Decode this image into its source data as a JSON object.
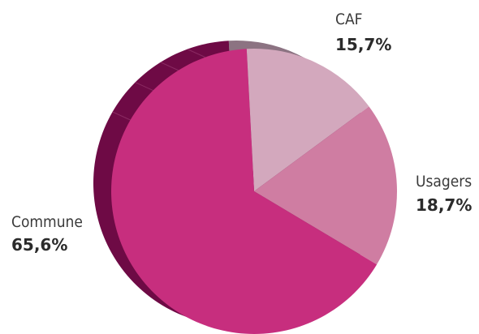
{
  "chart_data": {
    "type": "pie",
    "categories": [
      "CAF",
      "Usagers",
      "Commune"
    ],
    "values": [
      15.7,
      18.7,
      65.6
    ],
    "value_labels": [
      "15,7%",
      "18,7%",
      "65,6%"
    ],
    "colors": {
      "CAF": "#d3a8bd",
      "Usagers": "#cf7da2",
      "Commune": "#c72e7e",
      "side": "#6e0a45",
      "side_light": "#8c7382"
    },
    "legend": "none",
    "style": "3d-tilted"
  }
}
